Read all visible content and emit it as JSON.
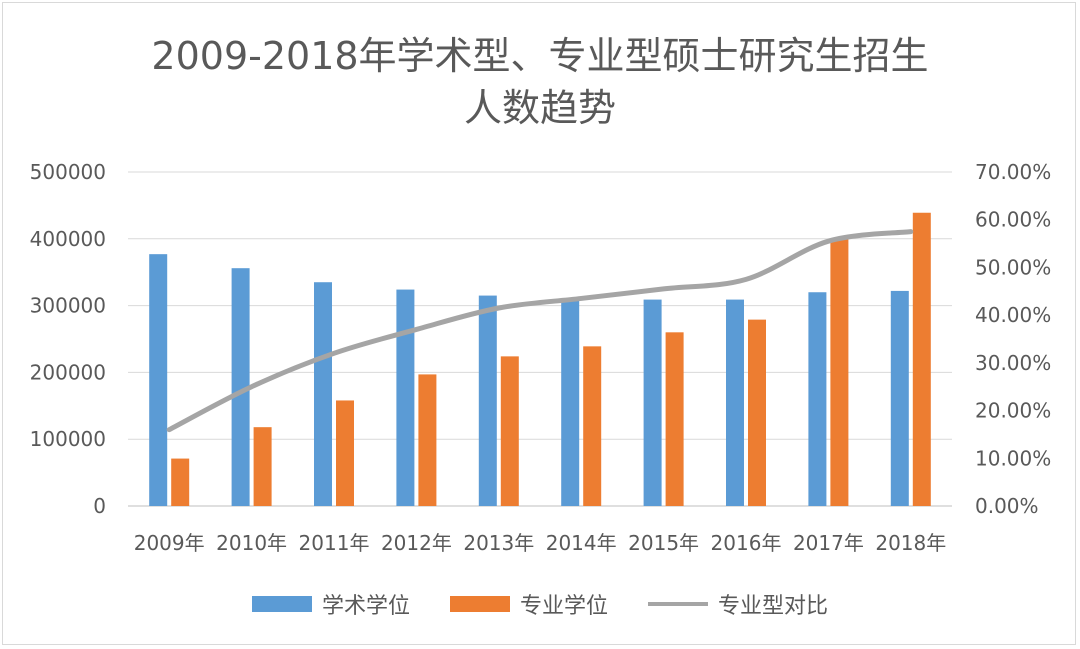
{
  "title_line1": "2009-2018年学术型、专业型硕士研究生招生",
  "title_line2": "人数趋势",
  "chart_data": {
    "type": "bar",
    "categories": [
      "2009年",
      "2010年",
      "2011年",
      "2012年",
      "2013年",
      "2014年",
      "2015年",
      "2016年",
      "2017年",
      "2018年"
    ],
    "series": [
      {
        "name": "学术学位",
        "type": "bar",
        "axis": "left",
        "color": "#5b9bd5",
        "values": [
          377000,
          356000,
          335000,
          324000,
          315000,
          310000,
          309000,
          309000,
          320000,
          322000
        ]
      },
      {
        "name": "专业学位",
        "type": "bar",
        "axis": "left",
        "color": "#ed7d31",
        "values": [
          71000,
          118000,
          158000,
          197000,
          224000,
          239000,
          260000,
          279000,
          400000,
          439000
        ]
      },
      {
        "name": "专业型对比",
        "type": "line",
        "axis": "right",
        "color": "#a5a5a5",
        "values": [
          0.16,
          0.25,
          0.32,
          0.37,
          0.415,
          0.435,
          0.455,
          0.475,
          0.555,
          0.575
        ]
      }
    ],
    "y_left": {
      "min": 0,
      "max": 500000,
      "ticks": [
        "0",
        "100000",
        "200000",
        "300000",
        "400000",
        "500000"
      ]
    },
    "y_right": {
      "min": 0,
      "max": 0.7,
      "ticks": [
        "0.00%",
        "10.00%",
        "20.00%",
        "30.00%",
        "40.00%",
        "50.00%",
        "60.00%",
        "70.00%"
      ]
    },
    "grid": true,
    "legend_position": "bottom"
  }
}
